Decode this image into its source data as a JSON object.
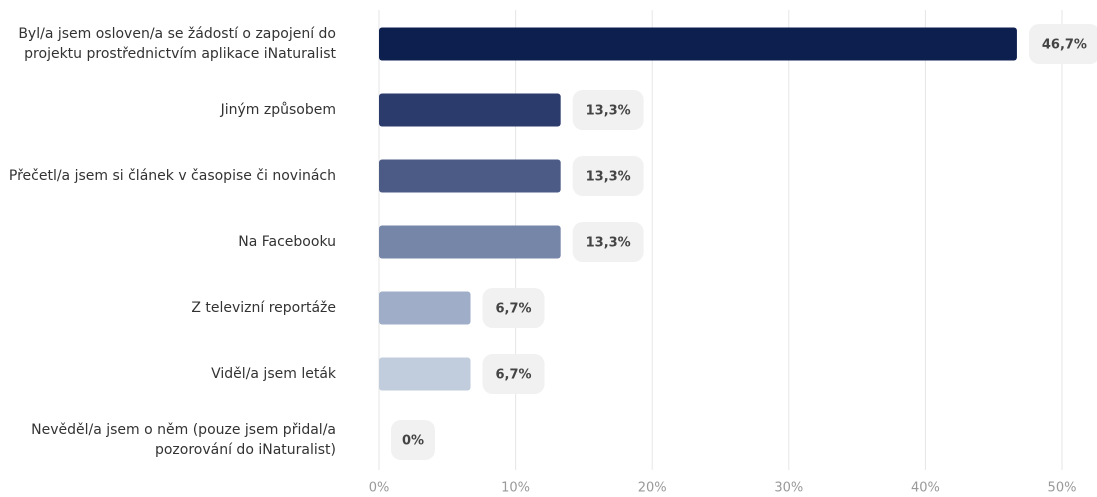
{
  "chart_data": {
    "type": "bar",
    "orientation": "horizontal",
    "categories": [
      "Byl/a jsem osloven/a se žádostí o zapojení do projektu prostřednictvím aplikace iNaturalist",
      "Jiným způsobem",
      "Přečetl/a jsem si článek v časopise či novinách",
      "Na Facebooku",
      "Z televizní reportáže",
      "Viděl/a jsem leták",
      "Nevěděl/a jsem o něm (pouze jsem přidal/a pozorování do iNaturalist)"
    ],
    "values": [
      46.7,
      13.3,
      13.3,
      13.3,
      6.7,
      6.7,
      0
    ],
    "value_labels": [
      "46,7%",
      "13,3%",
      "13,3%",
      "13,3%",
      "6,7%",
      "6,7%",
      "0%"
    ],
    "colors": [
      "#0d1f4f",
      "#2b3b6c",
      "#4c5b86",
      "#7686a9",
      "#9fadc8",
      "#c1cddc",
      "#dde4ec"
    ],
    "xlim": [
      0,
      50
    ],
    "xticks": [
      {
        "value": 0,
        "label": "0%"
      },
      {
        "value": 10,
        "label": "10%"
      },
      {
        "value": 20,
        "label": "20%"
      },
      {
        "value": 30,
        "label": "30%"
      },
      {
        "value": 40,
        "label": "40%"
      },
      {
        "value": 50,
        "label": "50%"
      }
    ],
    "grid": true
  }
}
